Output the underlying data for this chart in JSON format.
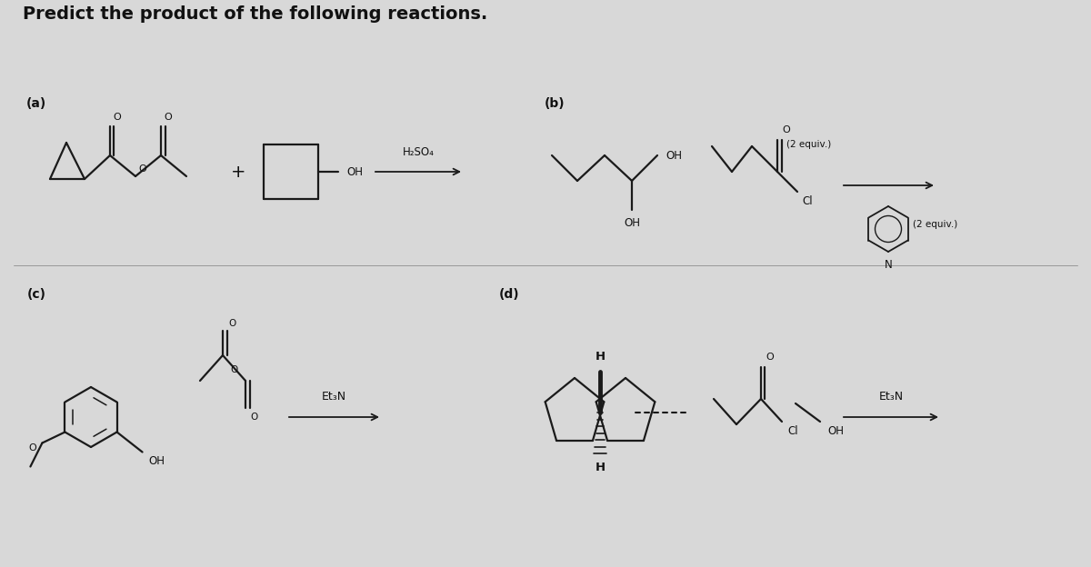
{
  "title": "Predict the product of the following reactions.",
  "bg_color": "#d8d8d8",
  "label_a": "(a)",
  "label_b": "(b)",
  "label_c": "(c)",
  "label_d": "(d)",
  "reagent_a": "H₂SO₄",
  "reagent_b_acid": "(2 equiv.)",
  "reagent_b_base": "(2 equiv.)",
  "reagent_c": "Et₃N",
  "reagent_d": "Et₃N",
  "line_color": "#1a1a1a",
  "text_color": "#111111",
  "arrow_color": "#111111"
}
